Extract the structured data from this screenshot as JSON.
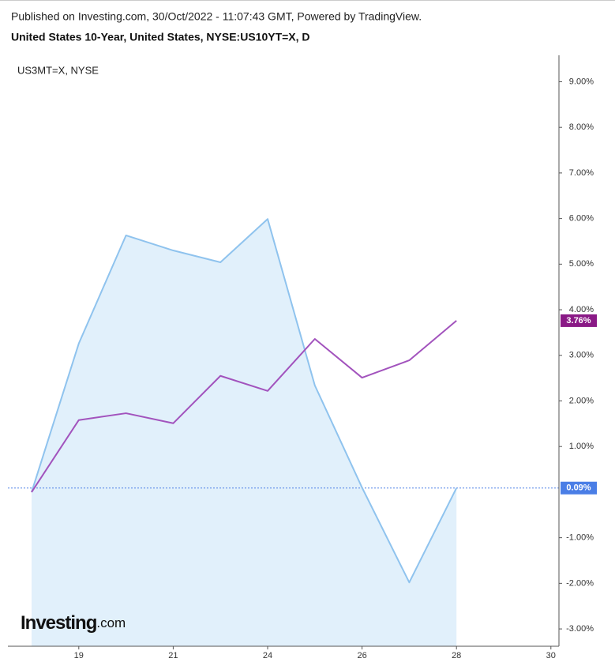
{
  "chart_data": {
    "type": "line",
    "published": "Published on Investing.com, 30/Oct/2022 - 11:07:43 GMT, Powered by TradingView.",
    "title": "United States 10-Year, United States, NYSE:US10YT=X, D",
    "overlay_label": "US3MT=X, NYSE",
    "logo": "Investing",
    "logo_suffix": ".com",
    "categories": [
      null,
      "19",
      null,
      "21",
      null,
      "24",
      null,
      "26",
      null,
      "28",
      null,
      "30"
    ],
    "series": [
      {
        "color": "#8fc3ee",
        "fill": "#e1f0fb",
        "values": [
          0.0,
          3.26,
          5.63,
          5.3,
          5.04,
          5.99,
          2.34,
          0.1,
          -1.98,
          0.09,
          null,
          null
        ],
        "last_label": "0.09%",
        "label_color": "#4a7ee6",
        "price_line": true
      },
      {
        "color": "#a253bd",
        "values": [
          0.0,
          1.58,
          1.73,
          1.51,
          2.55,
          2.22,
          3.36,
          2.51,
          2.89,
          3.76,
          null,
          null
        ],
        "last_label": "3.76%",
        "label_color": "#8a1a86"
      }
    ],
    "ylim": [
      -3.38,
      9.58
    ],
    "yticks": [
      {
        "value": 9,
        "label": "9.00%"
      },
      {
        "value": 8,
        "label": "8.00%"
      },
      {
        "value": 7,
        "label": "7.00%"
      },
      {
        "value": 6,
        "label": "6.00%"
      },
      {
        "value": 5,
        "label": "5.00%"
      },
      {
        "value": 4,
        "label": "4.00%"
      },
      {
        "value": 3,
        "label": "3.00%"
      },
      {
        "value": 2,
        "label": "2.00%"
      },
      {
        "value": 1,
        "label": "1.00%"
      },
      {
        "value": -1,
        "label": "-1.00%"
      },
      {
        "value": -2,
        "label": "-2.00%"
      },
      {
        "value": -3,
        "label": "-3.00%"
      }
    ],
    "grid": false
  }
}
